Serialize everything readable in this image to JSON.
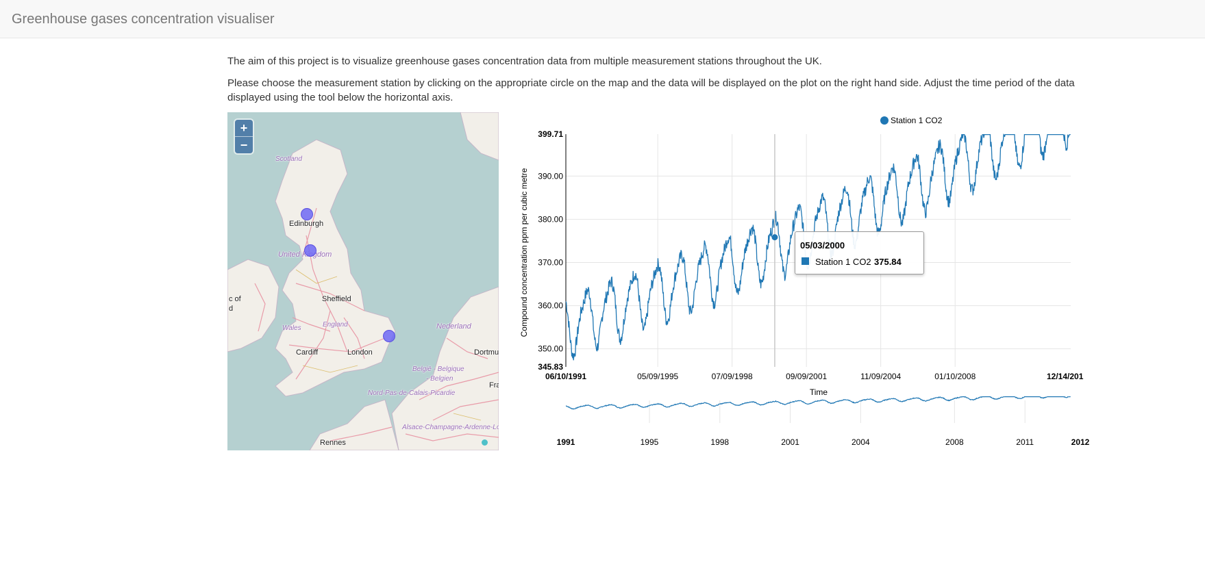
{
  "navbar": {
    "brand": "Greenhouse gases concentration visualiser"
  },
  "intro": {
    "paragraph_1": "The aim of this project is to visualize greenhouse gases concentration data from multiple measurement stations throughout the UK.",
    "paragraph_2": "Please choose the measurement station by clicking on the appropriate circle on the map and the data will be displayed on the plot on the right hand side. Adjust the time period of the data displayed using the tool below the horizontal axis."
  },
  "map": {
    "zoom_in_label": "+",
    "zoom_out_label": "−",
    "labels": {
      "scotland": "Scotland",
      "edinburgh": "Edinburgh",
      "united_kingdom": "United Kingdom",
      "sheffield": "Sheffield",
      "wales": "Wales",
      "england": "England",
      "cardiff": "Cardiff",
      "london": "London",
      "nederland": "Nederland",
      "dortmund": "Dortmu",
      "belgie": "België - Belgique",
      "belgien": "- Belgien",
      "nord_pas_de_calais": "Nord-Pas-de-Calais-Picardie",
      "fra": "Fra",
      "alsace": "Alsace-Champagne-Ardenne-Lo",
      "rennes": "Rennes",
      "isle_of_man_cut": "c of",
      "d_cut": "d"
    },
    "colors": {
      "sea": "#b5d0d0",
      "land": "#f2efe9",
      "road": "#e892a2",
      "marker": "#6e69f5"
    }
  },
  "chart_data": {
    "type": "line",
    "ylabel": "Compound concentration ppm per cubic metre",
    "xlabel": "Time",
    "ylim": [
      345.83,
      399.71
    ],
    "y_ticks": [
      "345.83",
      "350.00",
      "360.00",
      "370.00",
      "380.00",
      "390.00",
      "399.71"
    ],
    "x_ticks": [
      "06/10/1991",
      "05/09/1995",
      "07/09/1998",
      "09/09/2001",
      "11/09/2004",
      "01/10/2008",
      "12/14/201"
    ],
    "x_range": [
      "1991-06-10",
      "2012-12-14"
    ],
    "legend": {
      "position": "top-right"
    },
    "series": [
      {
        "name": "Station 1 CO2",
        "color": "#1f77b4",
        "start_year": 1991.44,
        "end_year": 2012.95,
        "baseline_start": 355.5,
        "annual_trend": 1.9,
        "seasonal_amplitude": 6.5
      }
    ],
    "tooltip": {
      "date": "05/03/2000",
      "series": "Station 1 CO2",
      "value": "375.84"
    },
    "hover_year": 2000.34,
    "navigator": {
      "ticks": [
        "1991",
        "1995",
        "1998",
        "2001",
        "2004",
        "2008",
        "2011",
        "2012"
      ]
    }
  }
}
